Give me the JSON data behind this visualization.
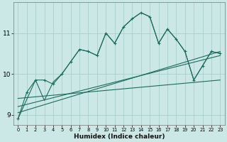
{
  "title": "",
  "xlabel": "Humidex (Indice chaleur)",
  "bg_color": "#cce8e6",
  "grid_color": "#aacfcc",
  "line_color": "#1d6b5e",
  "xlim": [
    -0.5,
    23.5
  ],
  "ylim": [
    8.75,
    11.75
  ],
  "xticks": [
    0,
    1,
    2,
    3,
    4,
    5,
    6,
    7,
    8,
    9,
    10,
    11,
    12,
    13,
    14,
    15,
    16,
    17,
    18,
    19,
    20,
    21,
    22,
    23
  ],
  "yticks": [
    9,
    10,
    11
  ],
  "main_x": [
    0,
    1,
    2,
    3,
    4,
    5,
    6,
    7,
    8,
    9,
    10,
    11,
    12,
    13,
    14,
    15,
    16,
    17,
    18,
    19,
    20,
    21,
    22,
    23
  ],
  "main_y": [
    8.9,
    9.55,
    9.85,
    9.85,
    9.75,
    10.0,
    10.3,
    10.6,
    10.55,
    10.45,
    11.0,
    10.75,
    11.15,
    11.35,
    11.5,
    11.4,
    10.75,
    11.1,
    10.85,
    10.55,
    9.85,
    10.2,
    10.55,
    10.5
  ],
  "line2_x": [
    0,
    2,
    3,
    4,
    5,
    6,
    7,
    8,
    9,
    10,
    11,
    12,
    13,
    14,
    15,
    16,
    17,
    18,
    19,
    20,
    21,
    22,
    23
  ],
  "line2_y": [
    8.9,
    9.85,
    9.35,
    9.8,
    10.0,
    10.3,
    10.6,
    10.55,
    10.45,
    11.0,
    10.75,
    11.15,
    11.35,
    11.5,
    11.4,
    10.75,
    11.1,
    10.85,
    10.55,
    9.85,
    10.2,
    10.55,
    10.5
  ],
  "trend1_x": [
    0,
    23
  ],
  "trend1_y": [
    9.05,
    10.55
  ],
  "trend2_x": [
    0,
    23
  ],
  "trend2_y": [
    9.2,
    10.45
  ],
  "trend3_x": [
    0,
    23
  ],
  "trend3_y": [
    9.4,
    9.85
  ]
}
